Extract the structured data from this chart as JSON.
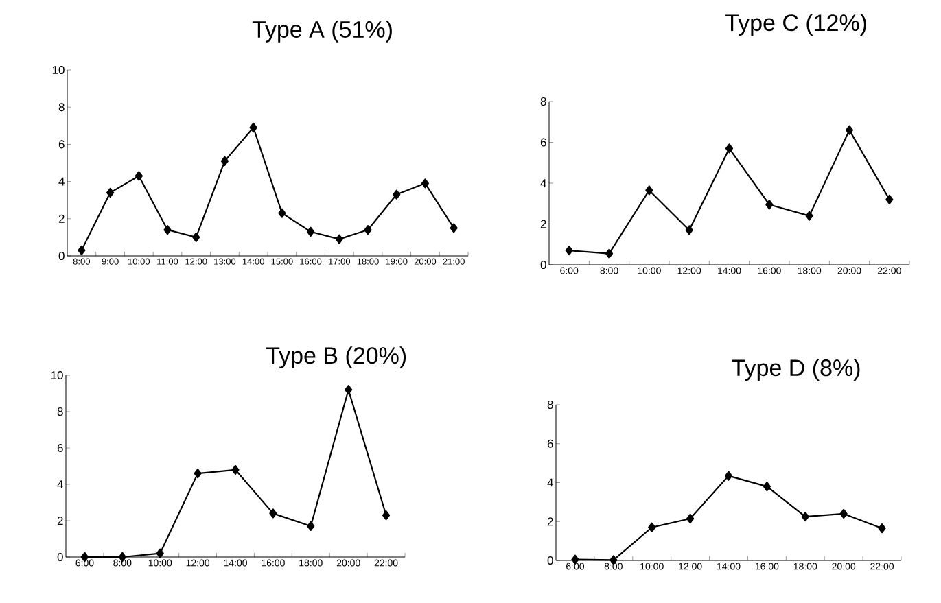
{
  "chart_data": [
    {
      "type": "line",
      "title": "Type A (51%)",
      "categories": [
        "8:00",
        "9:00",
        "10:00",
        "11:00",
        "12:00",
        "13:00",
        "14:00",
        "15:00",
        "16:00",
        "17:00",
        "18:00",
        "19:00",
        "20:00",
        "21:00"
      ],
      "values": [
        0.3,
        3.4,
        4.3,
        1.4,
        1.0,
        5.1,
        6.9,
        2.3,
        1.3,
        0.9,
        1.4,
        3.3,
        3.9,
        1.5
      ],
      "color": "#000000",
      "marker": "diamond",
      "ylim": [
        0,
        10
      ],
      "yticks": [
        0,
        2,
        4,
        6,
        8,
        10
      ]
    },
    {
      "type": "line",
      "title": "Type C (12%)",
      "categories": [
        "6:00",
        "8:00",
        "10:00",
        "12:00",
        "14:00",
        "16:00",
        "18:00",
        "20:00",
        "22:00"
      ],
      "values": [
        0.7,
        0.55,
        3.65,
        1.7,
        5.7,
        2.95,
        2.4,
        6.6,
        3.2
      ],
      "color": "#000000",
      "marker": "diamond",
      "ylim": [
        0,
        8
      ],
      "yticks": [
        0,
        2,
        4,
        6,
        8
      ]
    },
    {
      "type": "line",
      "title": "Type B (20%)",
      "categories": [
        "6:00",
        "8:00",
        "10:00",
        "12:00",
        "14:00",
        "16:00",
        "18:00",
        "20:00",
        "22:00"
      ],
      "values": [
        0.0,
        0.0,
        0.2,
        4.6,
        4.8,
        2.4,
        1.7,
        9.2,
        2.3
      ],
      "color": "#000000",
      "marker": "diamond",
      "ylim": [
        0,
        10
      ],
      "yticks": [
        0,
        2,
        4,
        6,
        8,
        10
      ]
    },
    {
      "type": "line",
      "title": "Type D (8%)",
      "categories": [
        "6:00",
        "8:00",
        "10:00",
        "12:00",
        "14:00",
        "16:00",
        "18:00",
        "20:00",
        "22:00"
      ],
      "values": [
        0.05,
        0.02,
        1.7,
        2.15,
        4.35,
        3.8,
        2.25,
        2.4,
        1.65
      ],
      "color": "#000000",
      "marker": "diamond",
      "ylim": [
        0,
        8
      ],
      "yticks": [
        0,
        2,
        4,
        6,
        8
      ]
    }
  ]
}
